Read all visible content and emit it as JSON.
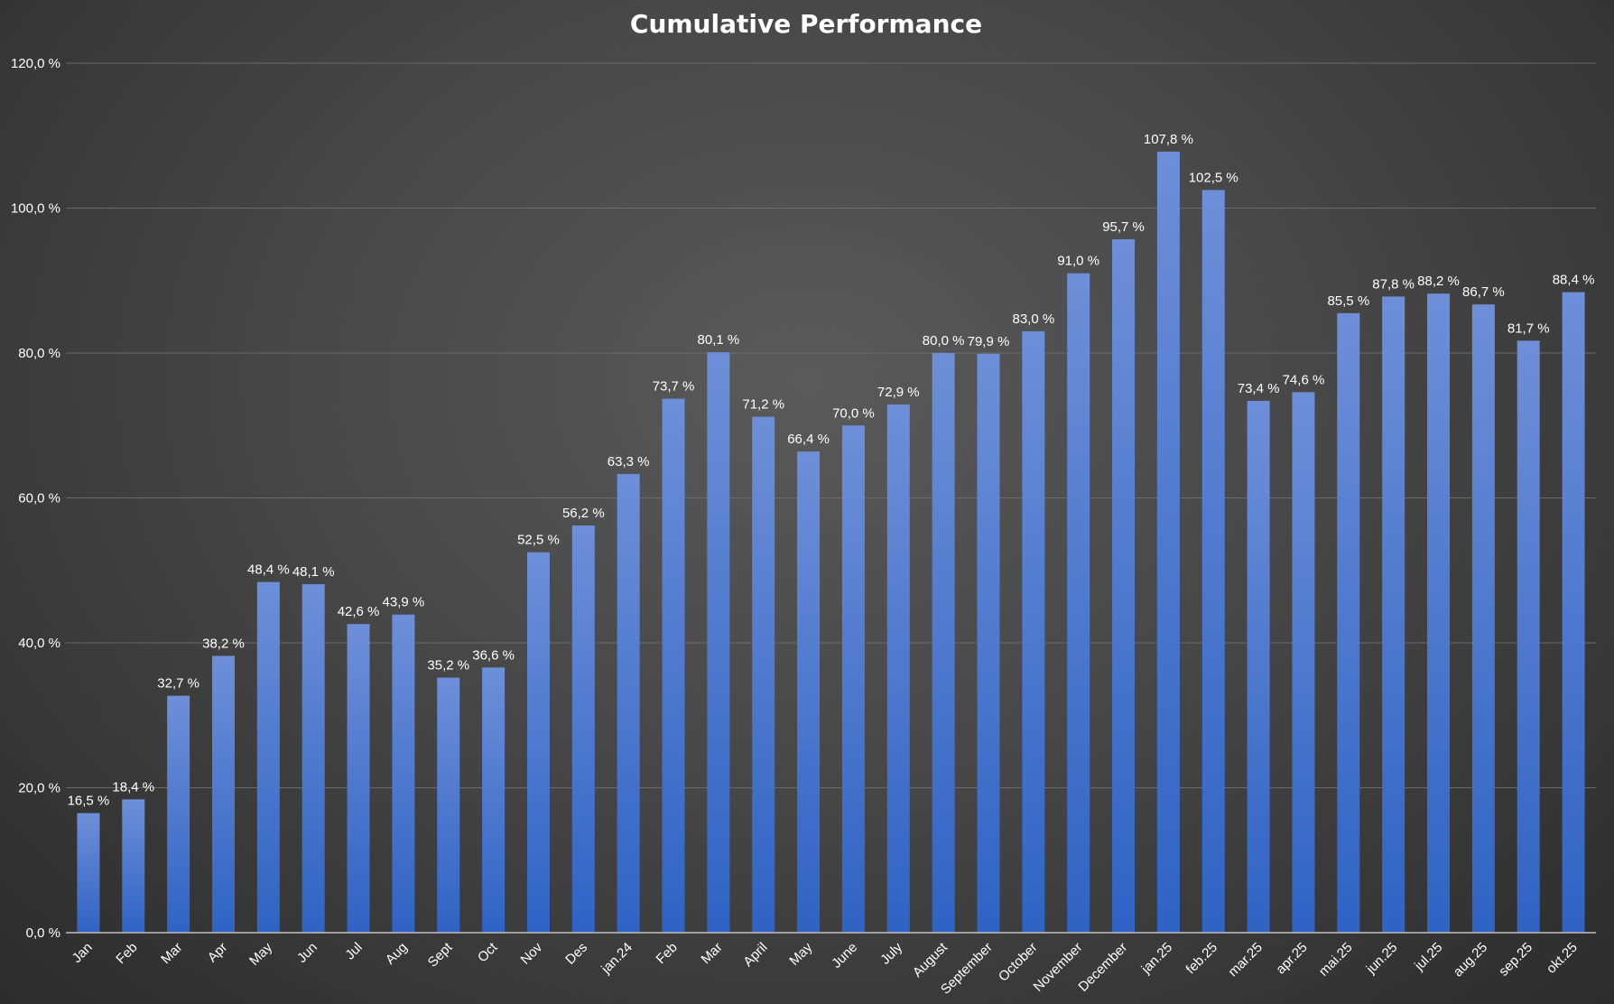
{
  "chart_data": {
    "type": "bar",
    "title": "Cumulative Performance",
    "xlabel": "",
    "ylabel": "",
    "ylim": [
      0,
      120
    ],
    "yticks": [
      "0,0 %",
      "20,0 %",
      "40,0 %",
      "60,0 %",
      "80,0 %",
      "100,0 %",
      "120,0 %"
    ],
    "grid": true,
    "legend": "none",
    "colors": {
      "bar_top": "#6e8fd8",
      "bar_bottom": "#2f63c4"
    },
    "categories": [
      "Jan",
      "Feb",
      "Mar",
      "Apr",
      "May",
      "Jun",
      "Jul",
      "Aug",
      "Sept",
      "Oct",
      "Nov",
      "Des",
      "jan.24",
      "Feb",
      "Mar",
      "April",
      "May",
      "June",
      "July",
      "August",
      "September",
      "October",
      "November",
      "December",
      "jan.25",
      "feb.25",
      "mar.25",
      "apr.25",
      "mai.25",
      "jun.25",
      "jul.25",
      "aug.25",
      "sep.25",
      "okt.25"
    ],
    "values": [
      16.5,
      18.4,
      32.7,
      38.2,
      48.4,
      48.1,
      42.6,
      43.9,
      35.2,
      36.6,
      52.5,
      56.2,
      63.3,
      73.7,
      80.1,
      71.2,
      66.4,
      70.0,
      72.9,
      80.0,
      79.9,
      83.0,
      91.0,
      95.7,
      107.8,
      102.5,
      73.4,
      74.6,
      85.5,
      87.8,
      88.2,
      86.7,
      81.7,
      88.4
    ],
    "data_labels": [
      "16,5 %",
      "18,4 %",
      "32,7 %",
      "38,2 %",
      "48,4 %",
      "48,1 %",
      "42,6 %",
      "43,9 %",
      "35,2 %",
      "36,6 %",
      "52,5 %",
      "56,2 %",
      "63,3 %",
      "73,7 %",
      "80,1 %",
      "71,2 %",
      "66,4 %",
      "70,0 %",
      "72,9 %",
      "80,0 %",
      "79,9 %",
      "83,0 %",
      "91,0 %",
      "95,7 %",
      "107,8 %",
      "102,5 %",
      "73,4 %",
      "74,6 %",
      "85,5 %",
      "87,8 %",
      "88,2 %",
      "86,7 %",
      "81,7 %",
      "88,4 %"
    ]
  }
}
